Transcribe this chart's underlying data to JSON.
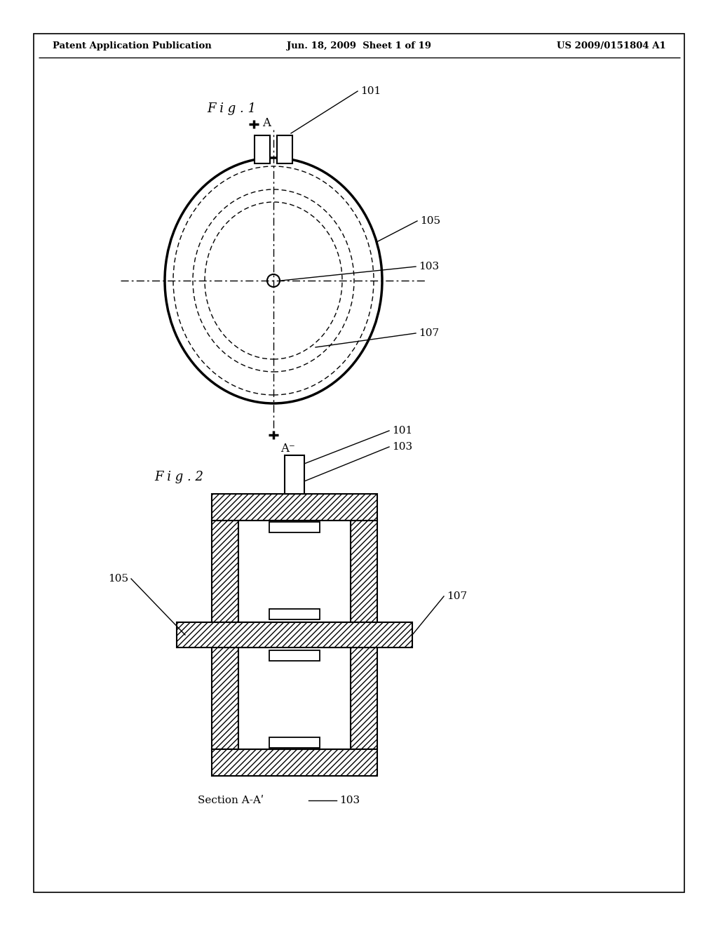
{
  "bg_color": "#ffffff",
  "header_left": "Patent Application Publication",
  "header_mid": "Jun. 18, 2009  Sheet 1 of 19",
  "header_right": "US 2009/0151804 A1",
  "fig1_label": "F i g . 1",
  "fig2_label": "F i g . 2",
  "label_101": "101",
  "label_103": "103",
  "label_105": "105",
  "label_107": "107",
  "label_A": "A",
  "label_Aminus": "A⁻",
  "label_section": "Section A-Aʹ",
  "line_color": "#000000"
}
